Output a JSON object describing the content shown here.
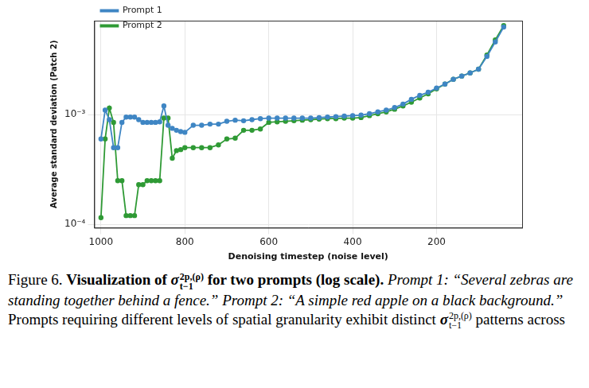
{
  "chart_data": {
    "type": "line",
    "x_label": "Denoising timestep (noise level)",
    "y_label": "Average standard deviation (Patch 2)",
    "log": "y",
    "grid": true,
    "legend": "upper left",
    "xlim": [
      1016,
      -4
    ],
    "xticks": [
      1000,
      800,
      600,
      400,
      200
    ],
    "ylim": [
      9.3e-05,
      0.0072
    ],
    "yticks": [
      {
        "value": 0.0001,
        "label": "10⁻⁴"
      },
      {
        "value": 0.001,
        "label": "10⁻³"
      }
    ],
    "x": [
      1000,
      990,
      980,
      970,
      960,
      950,
      940,
      930,
      920,
      910,
      900,
      890,
      880,
      870,
      860,
      850,
      840,
      830,
      820,
      810,
      800,
      780,
      760,
      740,
      720,
      700,
      680,
      660,
      640,
      620,
      600,
      580,
      560,
      540,
      520,
      500,
      480,
      460,
      440,
      420,
      400,
      380,
      360,
      340,
      320,
      300,
      280,
      260,
      240,
      220,
      200,
      180,
      160,
      140,
      120,
      100,
      80,
      60,
      40
    ],
    "series": [
      {
        "name": "Prompt 1",
        "color": "#3f86c4",
        "marker": "circle",
        "values": [
          0.0006,
          0.0011,
          0.0009,
          0.0005,
          0.0005,
          0.00085,
          0.00095,
          0.00095,
          0.00095,
          0.0009,
          0.00085,
          0.00085,
          0.00085,
          0.00085,
          0.00086,
          0.0012,
          0.0008,
          0.00075,
          0.00072,
          0.0007,
          0.00069,
          0.0008,
          0.0008,
          0.00082,
          0.00082,
          0.00087,
          0.00089,
          0.00088,
          0.0009,
          0.00092,
          0.00093,
          0.00093,
          0.00093,
          0.00093,
          0.00093,
          0.00093,
          0.00094,
          0.00095,
          0.00096,
          0.00097,
          0.00098,
          0.00099,
          0.00102,
          0.00106,
          0.0011,
          0.00116,
          0.00125,
          0.00138,
          0.0015,
          0.0016,
          0.00175,
          0.0019,
          0.0021,
          0.00225,
          0.0024,
          0.0026,
          0.0034,
          0.0046,
          0.0063
        ]
      },
      {
        "name": "Prompt 2",
        "color": "#2f9a35",
        "marker": "circle",
        "values": [
          0.000115,
          0.0006,
          0.00115,
          0.00085,
          0.00025,
          0.00025,
          0.00012,
          0.00012,
          0.00012,
          0.00023,
          0.00023,
          0.00025,
          0.00025,
          0.00025,
          0.00025,
          0.00093,
          0.00093,
          0.0004,
          0.00047,
          0.00048,
          0.0005,
          0.0005,
          0.0005,
          0.0005,
          0.00053,
          0.0006,
          0.00061,
          0.00072,
          0.00072,
          0.00074,
          0.00085,
          0.00086,
          0.00087,
          0.00088,
          0.00089,
          0.0009,
          0.00091,
          0.00092,
          0.00092,
          0.00093,
          0.00093,
          0.00094,
          0.00098,
          0.00102,
          0.00106,
          0.00112,
          0.0012,
          0.0013,
          0.00142,
          0.00155,
          0.00172,
          0.0019,
          0.0021,
          0.00225,
          0.0024,
          0.0026,
          0.0035,
          0.0048,
          0.0065
        ]
      }
    ]
  },
  "caption": {
    "label": "Figure 6.",
    "heading": [
      "Visualization of ",
      {
        "base": "σ",
        "sup": "2p,(ρ)",
        "sub": "t−1"
      },
      " for two prompts (log scale)."
    ],
    "body": [
      {
        "italic": "Prompt 1: “Several zebras are standing together behind a fence.” Prompt 2: “A simple red apple on a black background.”"
      },
      " Prompts requiring different levels of spatial granularity exhibit distinct ",
      {
        "base": "σ",
        "sup": "2p,(ρ)",
        "sub": "t−1"
      },
      " patterns across"
    ]
  }
}
